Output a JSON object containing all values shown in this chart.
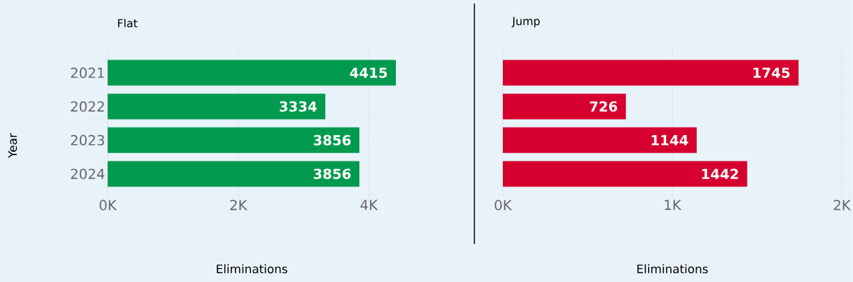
{
  "chart_data": [
    {
      "type": "bar",
      "orientation": "horizontal",
      "title": "Flat",
      "xlabel": "Eliminations",
      "ylabel": "Year",
      "categories": [
        "2021",
        "2022",
        "2023",
        "2024"
      ],
      "values": [
        4415,
        3334,
        3856,
        3856
      ],
      "color": "#009a4e",
      "xlim": [
        0,
        4415
      ],
      "xticks": [
        {
          "value": 0,
          "label": "0K"
        },
        {
          "value": 2000,
          "label": "2K"
        },
        {
          "value": 4000,
          "label": "4K"
        }
      ],
      "grid": "x",
      "data_labels": true
    },
    {
      "type": "bar",
      "orientation": "horizontal",
      "title": "Jump",
      "xlabel": "Eliminations",
      "categories": [
        "2021",
        "2022",
        "2023",
        "2024"
      ],
      "values": [
        1745,
        726,
        1144,
        1442
      ],
      "color": "#d6002f",
      "xlim": [
        0,
        2000
      ],
      "xticks": [
        {
          "value": 0,
          "label": "0K"
        },
        {
          "value": 1000,
          "label": "1K"
        },
        {
          "value": 2000,
          "label": "2K"
        }
      ],
      "grid": "x",
      "data_labels": true,
      "tick_labels": "x"
    }
  ]
}
